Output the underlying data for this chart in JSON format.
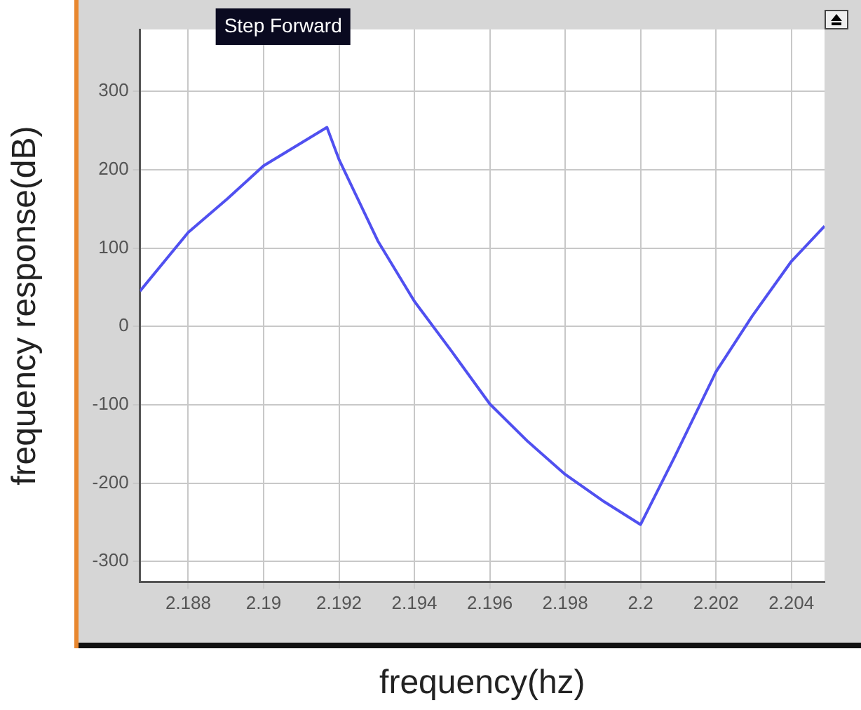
{
  "chart_data": {
    "type": "line",
    "xlabel": "frequency(hz)",
    "ylabel": "frequency response(dB)",
    "annotations": [
      "Step Forward"
    ],
    "x": [
      2.18672,
      2.188,
      2.18904,
      2.19,
      2.19168,
      2.192,
      2.19303,
      2.194,
      2.19499,
      2.196,
      2.19701,
      2.198,
      2.19904,
      2.2,
      2.2009,
      2.202,
      2.20296,
      2.204,
      2.20488
    ],
    "series": [
      {
        "color": "#5050f0",
        "values": [
          45,
          120,
          163,
          205,
          254,
          213,
          109,
          32,
          -32,
          -99,
          -147,
          -189,
          -224,
          -253,
          -167,
          -58,
          13,
          83,
          128
        ]
      }
    ],
    "xlim": [
      2.18672,
      2.20488
    ],
    "ylim": [
      -326,
      379
    ],
    "xticks": [
      2.188,
      2.19,
      2.192,
      2.194,
      2.196,
      2.198,
      2.2,
      2.202,
      2.204
    ],
    "yticks": [
      -300,
      -200,
      -100,
      0,
      100,
      200,
      300
    ],
    "grid": true,
    "legend": false,
    "marker": "none",
    "line_style": "solid"
  }
}
